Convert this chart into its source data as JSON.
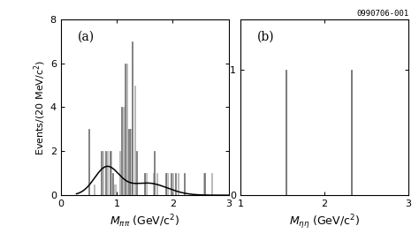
{
  "panel_a_label": "(a)",
  "panel_b_label": "(b)",
  "watermark": "0990706-001",
  "panel_a": {
    "xlabel": "M_{\\pi\\pi} (GeV/c^2)",
    "ylabel": "Events/(20 MeV/c^2)",
    "xlim": [
      0,
      3
    ],
    "ylim": [
      0,
      8
    ],
    "yticks": [
      0,
      2,
      4,
      6,
      8
    ],
    "xticks": [
      0,
      1,
      2,
      3
    ],
    "bars": [
      [
        0.5,
        3.0
      ],
      [
        0.6,
        0.0
      ],
      [
        0.7,
        2.0
      ],
      [
        0.72,
        0.0
      ],
      [
        0.75,
        2.0
      ],
      [
        0.8,
        2.0
      ],
      [
        0.82,
        0.0
      ],
      [
        0.85,
        2.0
      ],
      [
        0.88,
        0.0
      ],
      [
        0.9,
        2.0
      ],
      [
        0.93,
        0.0
      ],
      [
        0.97,
        1.0
      ],
      [
        1.0,
        0.0
      ],
      [
        1.05,
        2.0
      ],
      [
        1.08,
        0.0
      ],
      [
        1.1,
        4.0
      ],
      [
        1.13,
        0.0
      ],
      [
        1.15,
        6.0
      ],
      [
        1.18,
        0.0
      ],
      [
        1.2,
        3.0
      ],
      [
        1.23,
        0.0
      ],
      [
        1.25,
        3.0
      ],
      [
        1.27,
        0.0
      ],
      [
        1.28,
        7.0
      ],
      [
        1.3,
        0.0
      ],
      [
        1.32,
        5.0
      ],
      [
        1.35,
        0.0
      ],
      [
        1.38,
        2.0
      ],
      [
        1.4,
        0.0
      ],
      [
        1.5,
        1.0
      ],
      [
        1.52,
        0.0
      ],
      [
        1.6,
        0.0
      ],
      [
        1.65,
        2.0
      ],
      [
        1.67,
        0.0
      ],
      [
        1.7,
        1.0
      ],
      [
        1.72,
        0.0
      ],
      [
        1.85,
        1.0
      ],
      [
        1.87,
        0.0
      ],
      [
        1.9,
        0.0
      ],
      [
        1.95,
        1.0
      ],
      [
        1.97,
        0.0
      ],
      [
        2.0,
        1.0
      ],
      [
        2.02,
        0.0
      ],
      [
        2.05,
        1.0
      ],
      [
        2.07,
        0.0
      ],
      [
        2.1,
        1.0
      ],
      [
        2.12,
        0.0
      ],
      [
        2.2,
        1.0
      ],
      [
        2.22,
        0.0
      ],
      [
        2.5,
        0.0
      ],
      [
        2.55,
        1.0
      ],
      [
        2.57,
        0.0
      ],
      [
        2.65,
        0.0
      ],
      [
        2.7,
        1.0
      ],
      [
        2.72,
        0.0
      ]
    ],
    "bar_width": 0.018,
    "bar_color_dark": "#888888",
    "bar_color_light": "#cccccc",
    "curve_color": "#000000"
  },
  "panel_b": {
    "xlabel": "M_{\\eta\\eta} (GeV/c^2)",
    "xlim": [
      1,
      3
    ],
    "ylim": [
      0,
      1.4
    ],
    "yticks": [
      0,
      1
    ],
    "xticks": [
      1,
      2,
      3
    ],
    "spike1_x": 1.54,
    "spike2_x": 2.32,
    "spike_height": 1.0,
    "spike_color": "#666666"
  },
  "background": "#ffffff"
}
